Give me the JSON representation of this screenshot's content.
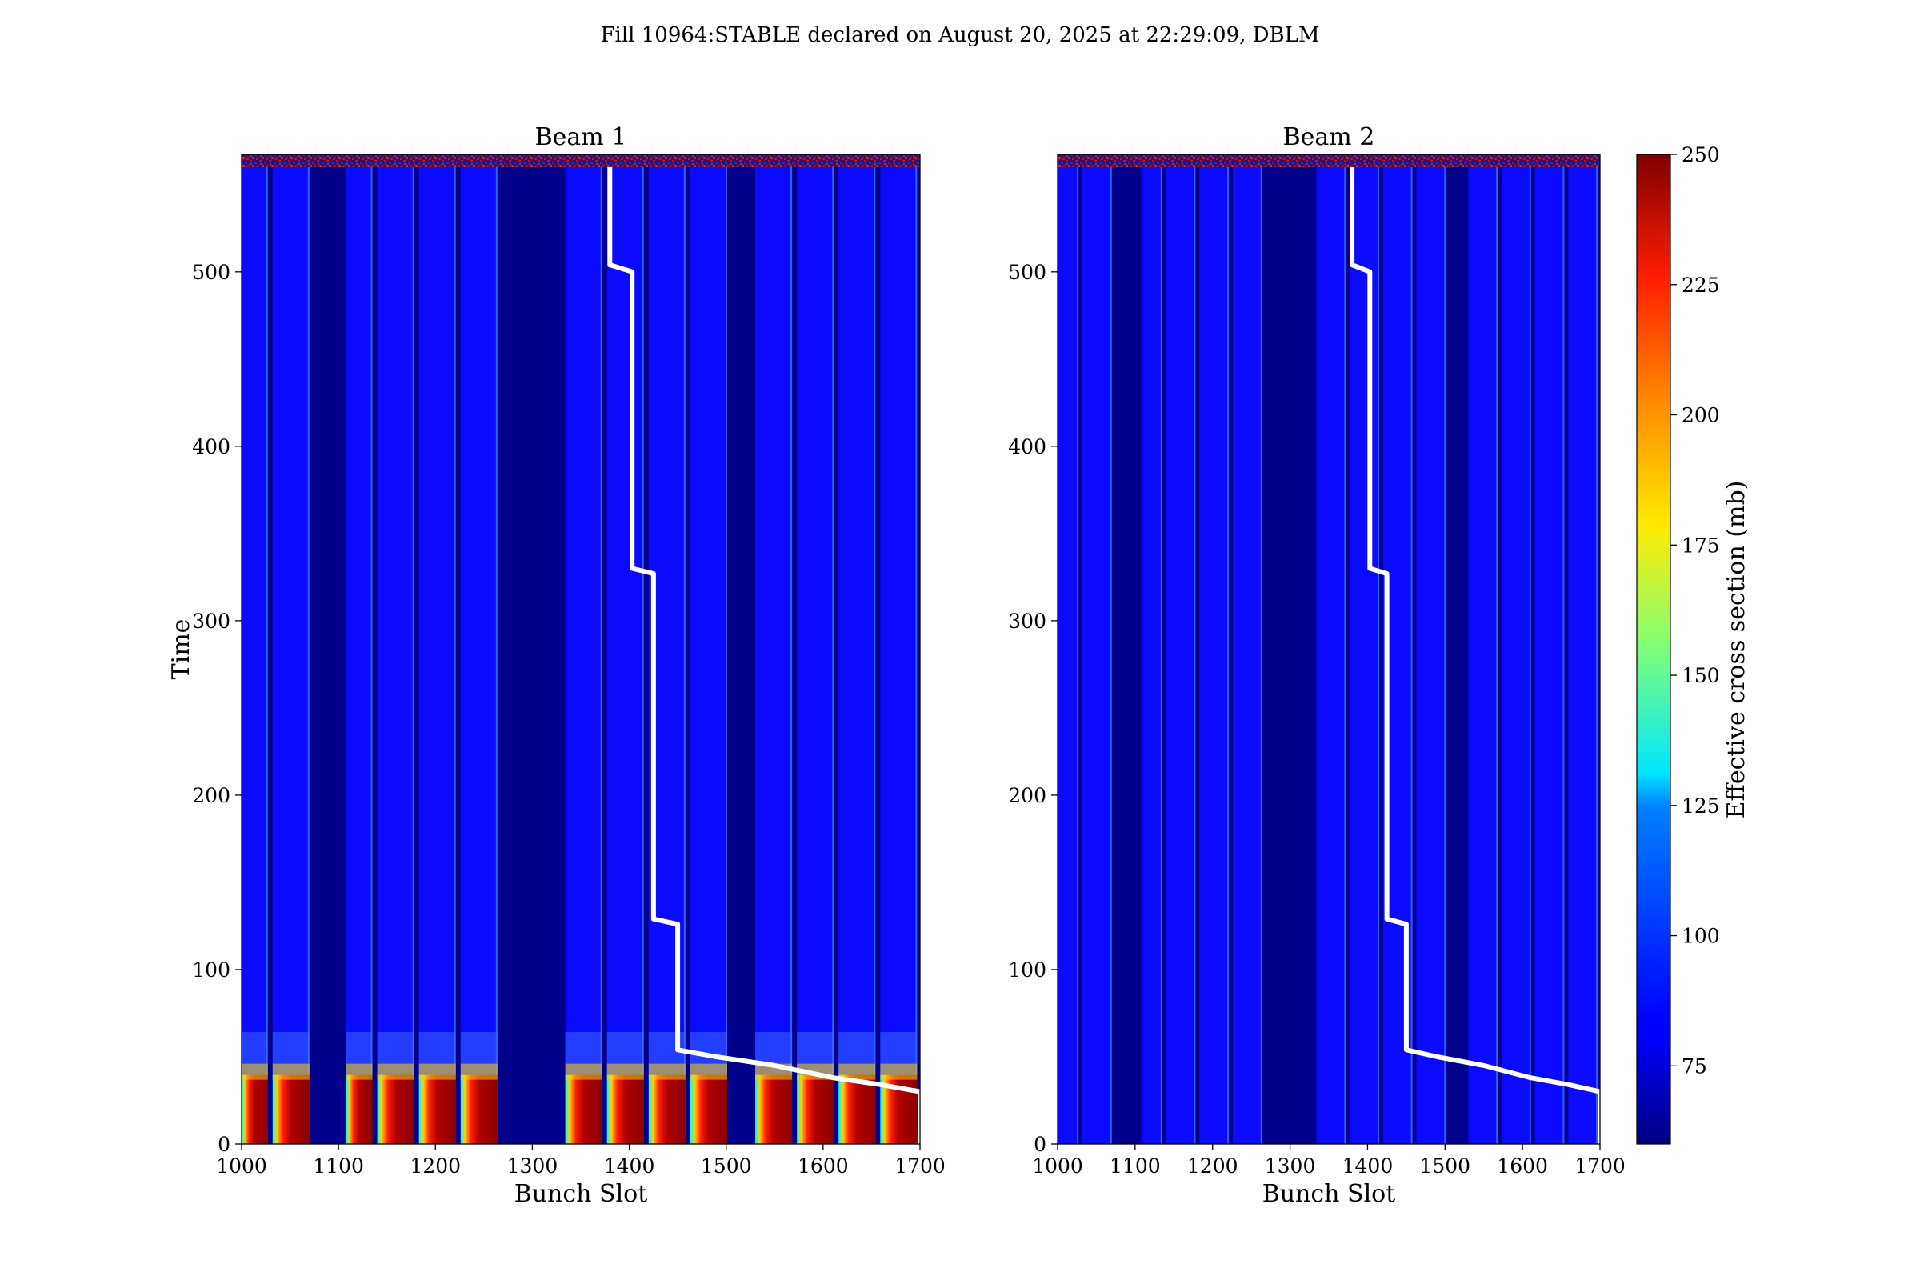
{
  "figure": {
    "title": "Fill 10964:STABLE declared on August 20, 2025 at 22:29:09, DBLM"
  },
  "colorbar": {
    "label": "Effective cross section (mb)",
    "ticks": [
      "75",
      "100",
      "125",
      "150",
      "175",
      "200",
      "225",
      "250"
    ],
    "colormap": "jet",
    "range": [
      60,
      250
    ]
  },
  "chart_data": [
    {
      "type": "heatmap",
      "title": "Beam 1",
      "xlabel": "Bunch Slot",
      "ylabel": "Time",
      "xlim": [
        1000,
        1700
      ],
      "ylim": [
        0,
        560
      ],
      "xticks": [
        "1000",
        "1100",
        "1200",
        "1300",
        "1400",
        "1500",
        "1600",
        "1700"
      ],
      "yticks": [
        "0",
        "100",
        "200",
        "300",
        "400",
        "500"
      ],
      "bunch_trains": [
        {
          "start": 1000,
          "end": 1027
        },
        {
          "start": 1032,
          "end": 1070
        },
        {
          "start": 1108,
          "end": 1135
        },
        {
          "start": 1140,
          "end": 1178
        },
        {
          "start": 1183,
          "end": 1221
        },
        {
          "start": 1226,
          "end": 1264
        },
        {
          "start": 1334,
          "end": 1372
        },
        {
          "start": 1377,
          "end": 1415
        },
        {
          "start": 1420,
          "end": 1458
        },
        {
          "start": 1463,
          "end": 1501
        },
        {
          "start": 1530,
          "end": 1568
        },
        {
          "start": 1573,
          "end": 1611
        },
        {
          "start": 1616,
          "end": 1654
        },
        {
          "start": 1659,
          "end": 1697
        }
      ],
      "early_high_cross_section_time": [
        0,
        55
      ],
      "overlay_line": {
        "color": "#ffffff",
        "points": [
          [
            1380,
            560
          ],
          [
            1380,
            504
          ],
          [
            1403,
            500
          ],
          [
            1403,
            330
          ],
          [
            1425,
            327
          ],
          [
            1425,
            129
          ],
          [
            1450,
            126
          ],
          [
            1450,
            54
          ],
          [
            1490,
            50
          ],
          [
            1550,
            45
          ],
          [
            1610,
            38
          ],
          [
            1660,
            34
          ],
          [
            1700,
            30
          ],
          [
            1700,
            0
          ]
        ]
      }
    },
    {
      "type": "heatmap",
      "title": "Beam 2",
      "xlabel": "Bunch Slot",
      "xlim": [
        1000,
        1700
      ],
      "ylim": [
        0,
        560
      ],
      "xticks": [
        "1000",
        "1100",
        "1200",
        "1300",
        "1400",
        "1500",
        "1600",
        "1700"
      ],
      "yticks": [
        "0",
        "100",
        "200",
        "300",
        "400",
        "500"
      ],
      "bunch_trains": [
        {
          "start": 1000,
          "end": 1027
        },
        {
          "start": 1032,
          "end": 1070
        },
        {
          "start": 1108,
          "end": 1135
        },
        {
          "start": 1140,
          "end": 1178
        },
        {
          "start": 1183,
          "end": 1221
        },
        {
          "start": 1226,
          "end": 1264
        },
        {
          "start": 1334,
          "end": 1372
        },
        {
          "start": 1377,
          "end": 1415
        },
        {
          "start": 1420,
          "end": 1458
        },
        {
          "start": 1463,
          "end": 1501
        },
        {
          "start": 1530,
          "end": 1568
        },
        {
          "start": 1573,
          "end": 1611
        },
        {
          "start": 1616,
          "end": 1654
        },
        {
          "start": 1659,
          "end": 1697
        }
      ],
      "overlay_line": {
        "color": "#ffffff",
        "points": [
          [
            1380,
            560
          ],
          [
            1380,
            504
          ],
          [
            1403,
            500
          ],
          [
            1403,
            330
          ],
          [
            1425,
            327
          ],
          [
            1425,
            129
          ],
          [
            1450,
            126
          ],
          [
            1450,
            54
          ],
          [
            1490,
            50
          ],
          [
            1550,
            45
          ],
          [
            1610,
            38
          ],
          [
            1660,
            34
          ],
          [
            1700,
            30
          ],
          [
            1700,
            0
          ]
        ]
      }
    }
  ]
}
